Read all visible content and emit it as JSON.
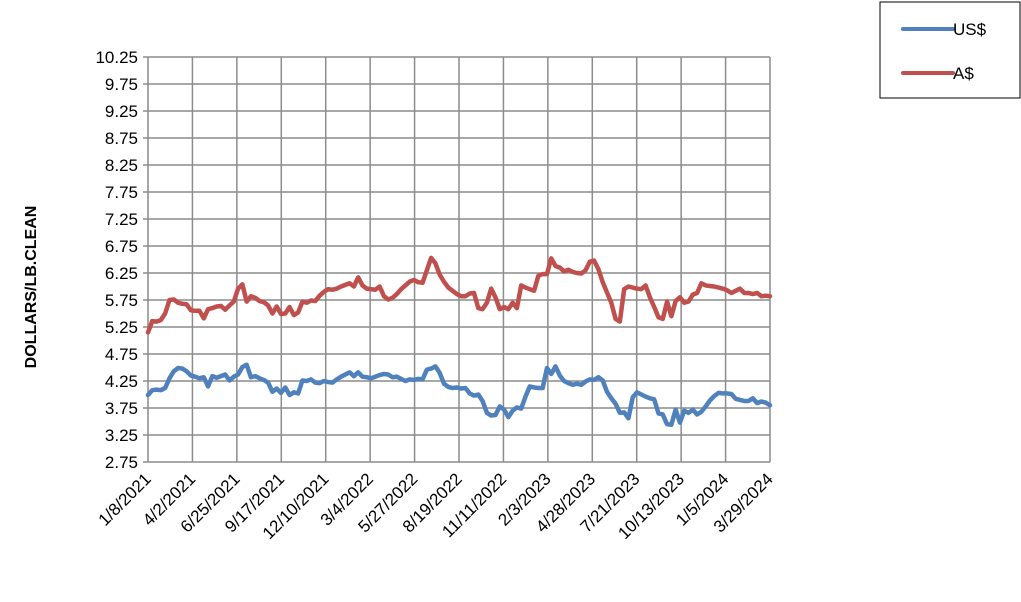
{
  "chart_data": {
    "type": "line",
    "title": "",
    "xlabel": "",
    "ylabel": "DOLLARS/LB.CLEAN",
    "ylim": [
      2.75,
      10.25
    ],
    "y_ticks": [
      "10.25",
      "9.75",
      "9.25",
      "8.75",
      "8.25",
      "7.75",
      "7.25",
      "6.75",
      "6.25",
      "5.75",
      "5.25",
      "4.75",
      "4.25",
      "3.75",
      "3.25",
      "2.75"
    ],
    "x_ticks": [
      "1/8/2021",
      "4/2/2021",
      "6/25/2021",
      "9/17/2021",
      "12/10/2021",
      "3/4/2022",
      "5/27/2022",
      "8/19/2022",
      "11/11/2022",
      "2/3/2023",
      "4/28/2023",
      "7/21/2023",
      "10/13/2023",
      "1/5/2024",
      "3/29/2024"
    ],
    "x_range": [
      "1/8/2021",
      "3/29/2024"
    ],
    "grid": true,
    "legend_position": "top-right",
    "series": [
      {
        "name": "US$",
        "color": "#4F81BD",
        "points": [
          [
            0,
            3.99
          ],
          [
            1,
            4.08
          ],
          [
            2,
            4.09
          ],
          [
            3,
            4.08
          ],
          [
            4,
            4.12
          ],
          [
            5,
            4.3
          ],
          [
            6,
            4.43
          ],
          [
            7,
            4.49
          ],
          [
            8,
            4.48
          ],
          [
            9,
            4.43
          ],
          [
            10,
            4.35
          ],
          [
            11,
            4.33
          ],
          [
            12,
            4.3
          ],
          [
            13,
            4.32
          ],
          [
            14,
            4.15
          ],
          [
            15,
            4.34
          ],
          [
            16,
            4.31
          ],
          [
            17,
            4.34
          ],
          [
            18,
            4.37
          ],
          [
            19,
            4.26
          ],
          [
            20,
            4.33
          ],
          [
            21,
            4.37
          ],
          [
            22,
            4.51
          ],
          [
            23,
            4.55
          ],
          [
            24,
            4.32
          ],
          [
            25,
            4.34
          ],
          [
            26,
            4.3
          ],
          [
            27,
            4.27
          ],
          [
            28,
            4.22
          ],
          [
            29,
            4.05
          ],
          [
            30,
            4.11
          ],
          [
            31,
            4.03
          ],
          [
            32,
            4.13
          ],
          [
            33,
            3.99
          ],
          [
            34,
            4.04
          ],
          [
            35,
            4.02
          ],
          [
            36,
            4.26
          ],
          [
            37,
            4.25
          ],
          [
            38,
            4.28
          ],
          [
            39,
            4.22
          ],
          [
            40,
            4.21
          ],
          [
            41,
            4.25
          ],
          [
            42,
            4.23
          ],
          [
            43,
            4.22
          ],
          [
            44,
            4.28
          ],
          [
            45,
            4.33
          ],
          [
            46,
            4.37
          ],
          [
            47,
            4.41
          ],
          [
            48,
            4.34
          ],
          [
            49,
            4.41
          ],
          [
            50,
            4.33
          ],
          [
            51,
            4.32
          ],
          [
            52,
            4.3
          ],
          [
            53,
            4.33
          ],
          [
            54,
            4.36
          ],
          [
            55,
            4.38
          ],
          [
            56,
            4.37
          ],
          [
            57,
            4.32
          ],
          [
            58,
            4.33
          ],
          [
            59,
            4.29
          ],
          [
            60,
            4.25
          ],
          [
            61,
            4.28
          ],
          [
            62,
            4.27
          ],
          [
            63,
            4.29
          ],
          [
            64,
            4.28
          ],
          [
            65,
            4.46
          ],
          [
            66,
            4.48
          ],
          [
            67,
            4.52
          ],
          [
            68,
            4.4
          ],
          [
            69,
            4.2
          ],
          [
            70,
            4.14
          ],
          [
            71,
            4.12
          ],
          [
            72,
            4.13
          ],
          [
            73,
            4.11
          ],
          [
            74,
            4.12
          ],
          [
            75,
            4.02
          ],
          [
            76,
            3.98
          ],
          [
            77,
            4.0
          ],
          [
            78,
            3.88
          ],
          [
            79,
            3.66
          ],
          [
            80,
            3.61
          ],
          [
            81,
            3.62
          ],
          [
            82,
            3.78
          ],
          [
            83,
            3.72
          ],
          [
            84,
            3.58
          ],
          [
            85,
            3.7
          ],
          [
            86,
            3.76
          ],
          [
            87,
            3.74
          ],
          [
            88,
            3.96
          ],
          [
            89,
            4.15
          ],
          [
            90,
            4.13
          ],
          [
            91,
            4.12
          ],
          [
            92,
            4.12
          ],
          [
            93,
            4.49
          ],
          [
            94,
            4.38
          ],
          [
            95,
            4.52
          ],
          [
            96,
            4.35
          ],
          [
            97,
            4.25
          ],
          [
            98,
            4.21
          ],
          [
            99,
            4.18
          ],
          [
            100,
            4.2
          ],
          [
            101,
            4.18
          ],
          [
            102,
            4.24
          ],
          [
            103,
            4.28
          ],
          [
            104,
            4.27
          ],
          [
            105,
            4.32
          ],
          [
            106,
            4.26
          ],
          [
            107,
            4.05
          ],
          [
            108,
            3.93
          ],
          [
            109,
            3.83
          ],
          [
            110,
            3.66
          ],
          [
            111,
            3.67
          ],
          [
            112,
            3.56
          ],
          [
            113,
            3.95
          ],
          [
            114,
            4.04
          ],
          [
            115,
            4.0
          ],
          [
            116,
            3.96
          ],
          [
            117,
            3.93
          ],
          [
            118,
            3.91
          ],
          [
            119,
            3.65
          ],
          [
            120,
            3.63
          ],
          [
            121,
            3.45
          ],
          [
            122,
            3.44
          ],
          [
            123,
            3.72
          ],
          [
            124,
            3.48
          ],
          [
            125,
            3.7
          ],
          [
            126,
            3.66
          ],
          [
            127,
            3.72
          ],
          [
            128,
            3.63
          ],
          [
            129,
            3.68
          ],
          [
            130,
            3.78
          ],
          [
            131,
            3.89
          ],
          [
            132,
            3.97
          ],
          [
            133,
            4.03
          ],
          [
            134,
            4.02
          ],
          [
            135,
            4.02
          ],
          [
            136,
            4.01
          ],
          [
            137,
            3.92
          ],
          [
            138,
            3.9
          ],
          [
            139,
            3.88
          ],
          [
            140,
            3.88
          ],
          [
            141,
            3.93
          ],
          [
            142,
            3.84
          ],
          [
            143,
            3.87
          ],
          [
            144,
            3.85
          ],
          [
            145,
            3.8
          ]
        ]
      },
      {
        "name": "A$",
        "color": "#C0504D",
        "points": [
          [
            0,
            5.15
          ],
          [
            1,
            5.36
          ],
          [
            2,
            5.35
          ],
          [
            3,
            5.38
          ],
          [
            4,
            5.5
          ],
          [
            5,
            5.75
          ],
          [
            6,
            5.76
          ],
          [
            7,
            5.7
          ],
          [
            8,
            5.68
          ],
          [
            9,
            5.67
          ],
          [
            10,
            5.56
          ],
          [
            11,
            5.55
          ],
          [
            12,
            5.55
          ],
          [
            13,
            5.41
          ],
          [
            14,
            5.58
          ],
          [
            15,
            5.6
          ],
          [
            16,
            5.63
          ],
          [
            17,
            5.64
          ],
          [
            18,
            5.57
          ],
          [
            19,
            5.65
          ],
          [
            20,
            5.72
          ],
          [
            21,
            5.96
          ],
          [
            22,
            6.04
          ],
          [
            23,
            5.72
          ],
          [
            24,
            5.82
          ],
          [
            25,
            5.79
          ],
          [
            26,
            5.73
          ],
          [
            27,
            5.71
          ],
          [
            28,
            5.65
          ],
          [
            29,
            5.5
          ],
          [
            30,
            5.63
          ],
          [
            31,
            5.49
          ],
          [
            32,
            5.5
          ],
          [
            33,
            5.62
          ],
          [
            34,
            5.47
          ],
          [
            35,
            5.52
          ],
          [
            36,
            5.72
          ],
          [
            37,
            5.7
          ],
          [
            38,
            5.74
          ],
          [
            39,
            5.73
          ],
          [
            40,
            5.83
          ],
          [
            41,
            5.9
          ],
          [
            42,
            5.95
          ],
          [
            43,
            5.94
          ],
          [
            44,
            5.96
          ],
          [
            45,
            6.0
          ],
          [
            46,
            6.03
          ],
          [
            47,
            6.06
          ],
          [
            48,
            6.0
          ],
          [
            49,
            6.17
          ],
          [
            50,
            6.02
          ],
          [
            51,
            5.96
          ],
          [
            52,
            5.95
          ],
          [
            53,
            5.94
          ],
          [
            54,
            6.0
          ],
          [
            55,
            5.82
          ],
          [
            56,
            5.76
          ],
          [
            57,
            5.79
          ],
          [
            58,
            5.86
          ],
          [
            59,
            5.95
          ],
          [
            60,
            6.02
          ],
          [
            61,
            6.09
          ],
          [
            62,
            6.12
          ],
          [
            63,
            6.08
          ],
          [
            64,
            6.07
          ],
          [
            65,
            6.3
          ],
          [
            66,
            6.53
          ],
          [
            67,
            6.43
          ],
          [
            68,
            6.22
          ],
          [
            69,
            6.09
          ],
          [
            70,
            5.98
          ],
          [
            71,
            5.92
          ],
          [
            72,
            5.86
          ],
          [
            73,
            5.82
          ],
          [
            74,
            5.82
          ],
          [
            75,
            5.87
          ],
          [
            76,
            5.88
          ],
          [
            77,
            5.6
          ],
          [
            78,
            5.58
          ],
          [
            79,
            5.7
          ],
          [
            80,
            5.96
          ],
          [
            81,
            5.8
          ],
          [
            82,
            5.58
          ],
          [
            83,
            5.62
          ],
          [
            84,
            5.58
          ],
          [
            85,
            5.7
          ],
          [
            86,
            5.6
          ],
          [
            87,
            6.02
          ],
          [
            88,
            5.98
          ],
          [
            89,
            5.95
          ],
          [
            90,
            5.92
          ],
          [
            91,
            6.2
          ],
          [
            92,
            6.23
          ],
          [
            93,
            6.23
          ],
          [
            94,
            6.52
          ],
          [
            95,
            6.38
          ],
          [
            96,
            6.35
          ],
          [
            97,
            6.28
          ],
          [
            98,
            6.31
          ],
          [
            99,
            6.27
          ],
          [
            100,
            6.25
          ],
          [
            101,
            6.24
          ],
          [
            102,
            6.3
          ],
          [
            103,
            6.46
          ],
          [
            104,
            6.48
          ],
          [
            105,
            6.32
          ],
          [
            106,
            6.08
          ],
          [
            107,
            5.89
          ],
          [
            108,
            5.7
          ],
          [
            109,
            5.4
          ],
          [
            110,
            5.35
          ],
          [
            111,
            5.95
          ],
          [
            112,
            6.0
          ],
          [
            113,
            5.98
          ],
          [
            114,
            5.96
          ],
          [
            115,
            5.95
          ],
          [
            116,
            6.02
          ],
          [
            117,
            5.8
          ],
          [
            118,
            5.62
          ],
          [
            119,
            5.43
          ],
          [
            120,
            5.4
          ],
          [
            121,
            5.72
          ],
          [
            122,
            5.45
          ],
          [
            123,
            5.73
          ],
          [
            124,
            5.8
          ],
          [
            125,
            5.7
          ],
          [
            126,
            5.72
          ],
          [
            127,
            5.85
          ],
          [
            128,
            5.88
          ],
          [
            129,
            6.06
          ],
          [
            130,
            6.02
          ],
          [
            131,
            6.01
          ],
          [
            132,
            6.0
          ],
          [
            133,
            5.98
          ],
          [
            134,
            5.96
          ],
          [
            135,
            5.93
          ],
          [
            136,
            5.88
          ],
          [
            137,
            5.92
          ],
          [
            138,
            5.96
          ],
          [
            139,
            5.88
          ],
          [
            140,
            5.88
          ],
          [
            141,
            5.86
          ],
          [
            142,
            5.88
          ],
          [
            143,
            5.82
          ],
          [
            144,
            5.83
          ],
          [
            145,
            5.82
          ]
        ]
      }
    ]
  }
}
